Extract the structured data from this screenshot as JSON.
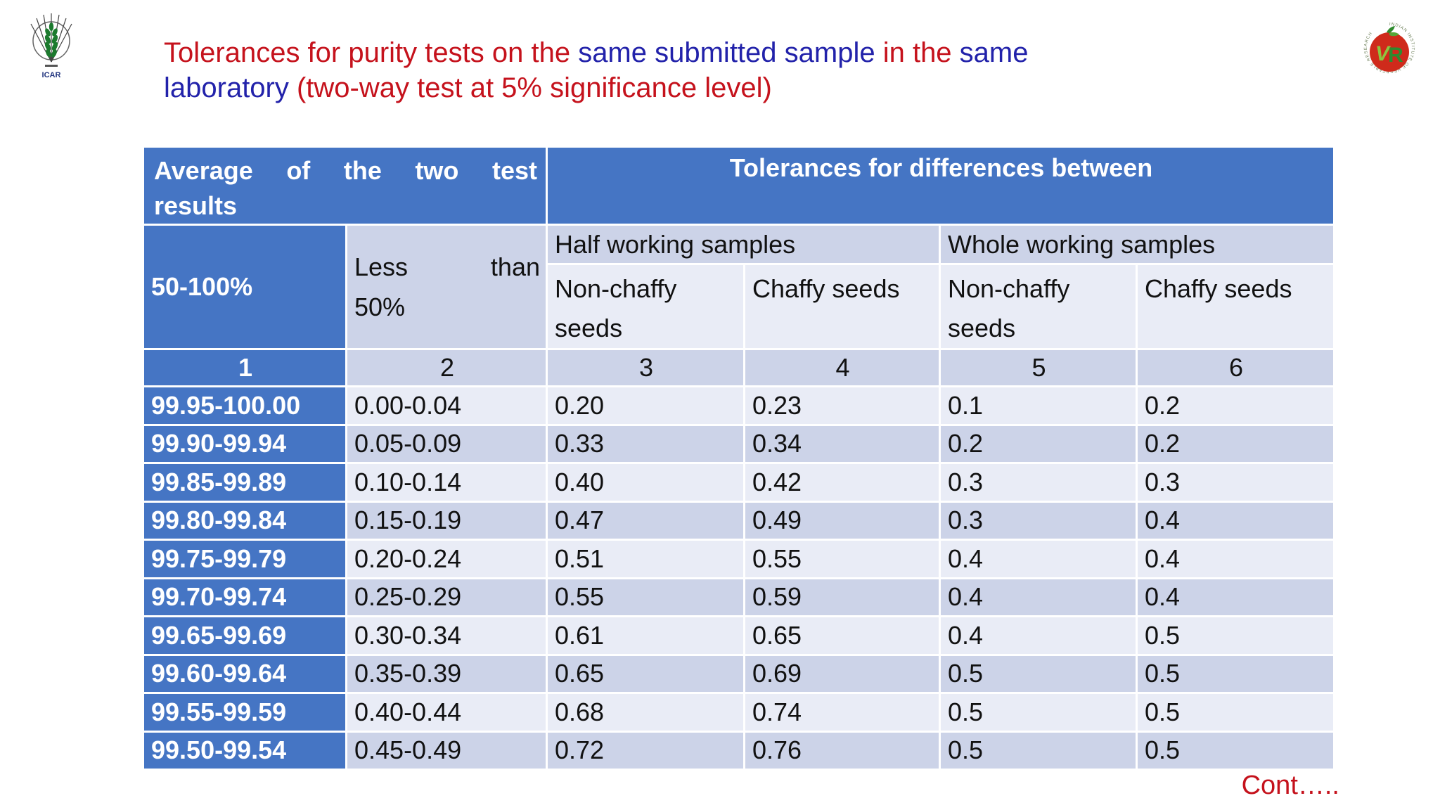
{
  "slide": {
    "title": {
      "line1": [
        {
          "text": "Tolerances for purity tests on the ",
          "color": "#c5121c"
        },
        {
          "text": "same submitted sample ",
          "color": "#2222aa"
        },
        {
          "text": "in the ",
          "color": "#c5121c"
        },
        {
          "text": "same",
          "color": "#2222aa"
        }
      ],
      "line2": [
        {
          "text": "laboratory ",
          "color": "#2222aa"
        },
        {
          "text": "(two-way test at 5% significance level)",
          "color": "#c5121c"
        }
      ]
    },
    "footer_cont": "Cont…..",
    "colors": {
      "header_blue": "#4575c4",
      "row_light": "#e9ecf6",
      "row_dark": "#ccd3e8",
      "title_red": "#c5121c",
      "title_blue": "#2222aa"
    },
    "logos": {
      "left": {
        "caption": "ICAR"
      },
      "right": {
        "letters_v": "V",
        "letters_r": "R",
        "ring_text": "INDIAN INSTITUTE OF VEGETABLE RESEARCH"
      }
    }
  },
  "table": {
    "header": {
      "avg_line1_words": [
        "Average",
        "of",
        "the",
        "two",
        "test"
      ],
      "avg_line2": "results",
      "tolerances_label": "Tolerances for differences between",
      "range_label": "50-100%",
      "less_line1_words": [
        "Less",
        "than"
      ],
      "less_line2": "50%",
      "half_working": "Half working samples",
      "whole_working": "Whole working samples",
      "non_chaffy_half": "Non-chaffy seeds",
      "chaffy_half": "Chaffy seeds",
      "non_chaffy_whole": "Non-chaffy seeds",
      "chaffy_whole": "Chaffy seeds"
    },
    "numbering": [
      "1",
      "2",
      "3",
      "4",
      "5",
      "6"
    ],
    "rows": [
      [
        "99.95-100.00",
        "0.00-0.04",
        "0.20",
        "0.23",
        "0.1",
        "0.2"
      ],
      [
        "99.90-99.94",
        "0.05-0.09",
        "0.33",
        "0.34",
        "0.2",
        "0.2"
      ],
      [
        "99.85-99.89",
        "0.10-0.14",
        "0.40",
        "0.42",
        "0.3",
        "0.3"
      ],
      [
        "99.80-99.84",
        "0.15-0.19",
        "0.47",
        "0.49",
        "0.3",
        "0.4"
      ],
      [
        "99.75-99.79",
        "0.20-0.24",
        "0.51",
        "0.55",
        "0.4",
        "0.4"
      ],
      [
        "99.70-99.74",
        "0.25-0.29",
        "0.55",
        "0.59",
        "0.4",
        "0.4"
      ],
      [
        "99.65-99.69",
        "0.30-0.34",
        "0.61",
        "0.65",
        "0.4",
        "0.5"
      ],
      [
        "99.60-99.64",
        "0.35-0.39",
        "0.65",
        "0.69",
        "0.5",
        "0.5"
      ],
      [
        "99.55-99.59",
        "0.40-0.44",
        "0.68",
        "0.74",
        "0.5",
        "0.5"
      ],
      [
        "99.50-99.54",
        "0.45-0.49",
        "0.72",
        "0.76",
        "0.5",
        "0.5"
      ]
    ]
  }
}
